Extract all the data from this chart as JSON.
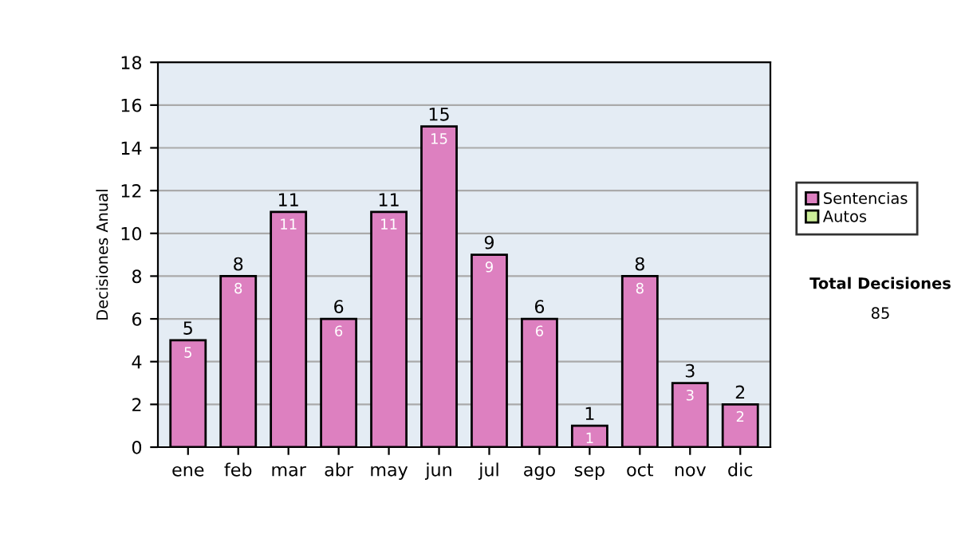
{
  "chart_data": {
    "type": "bar",
    "ylabel": "Decisiones Anual",
    "categories": [
      "ene",
      "feb",
      "mar",
      "abr",
      "may",
      "jun",
      "jul",
      "ago",
      "sep",
      "oct",
      "nov",
      "dic"
    ],
    "series": [
      {
        "name": "Sentencias",
        "color": "#dd80c0",
        "values": [
          5,
          8,
          11,
          6,
          11,
          15,
          9,
          6,
          1,
          8,
          3,
          2
        ],
        "value_labels": [
          "5",
          "8",
          "11",
          "6",
          "11",
          "15",
          "9",
          "6",
          "1",
          "8",
          "3",
          "2"
        ]
      },
      {
        "name": "Autos",
        "color": "#ccee99",
        "values": [
          null,
          null,
          null,
          null,
          null,
          null,
          null,
          null,
          null,
          null,
          null,
          null
        ]
      }
    ],
    "stacked": true,
    "totals": [
      "5",
      "8",
      "11",
      "6",
      "11",
      "15",
      "9",
      "6",
      "1",
      "8",
      "3",
      "2"
    ],
    "ylim": [
      0,
      18
    ],
    "yticks": [
      0,
      2,
      4,
      6,
      8,
      10,
      12,
      14,
      16,
      18
    ],
    "grid": "y",
    "legend": "right",
    "annotations": [
      "Total Decisiones",
      "85"
    ]
  }
}
